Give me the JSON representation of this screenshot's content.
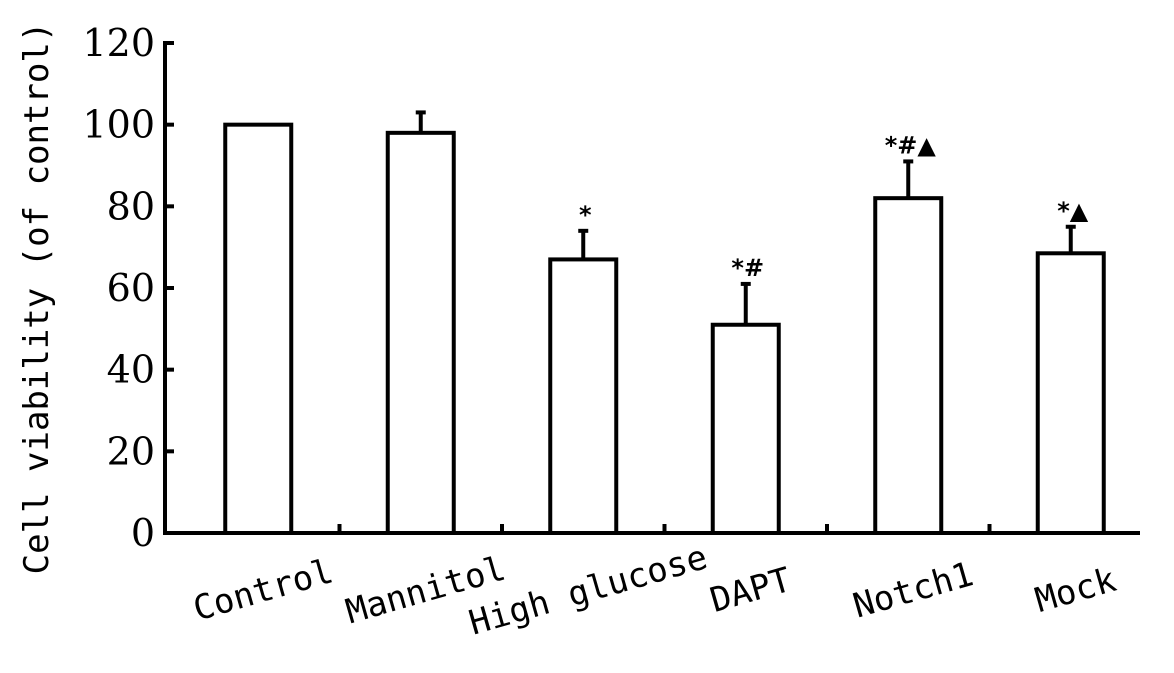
{
  "chart_data": {
    "type": "bar",
    "title": "",
    "ylabel": "Cell viability (of control)",
    "xlabel": "",
    "ylim": [
      0,
      120
    ],
    "yticks": [
      0,
      20,
      40,
      60,
      80,
      100,
      120
    ],
    "categories": [
      "Control",
      "Mannitol",
      "High glucose",
      "DAPT",
      "Notch1",
      "Mock"
    ],
    "values": [
      100,
      98,
      67,
      51,
      82,
      68.5
    ],
    "errors": [
      0.5,
      5,
      7,
      10,
      9,
      6.5
    ],
    "significance": [
      "",
      "",
      "*",
      "*#",
      "*#▲",
      "*▲"
    ]
  }
}
